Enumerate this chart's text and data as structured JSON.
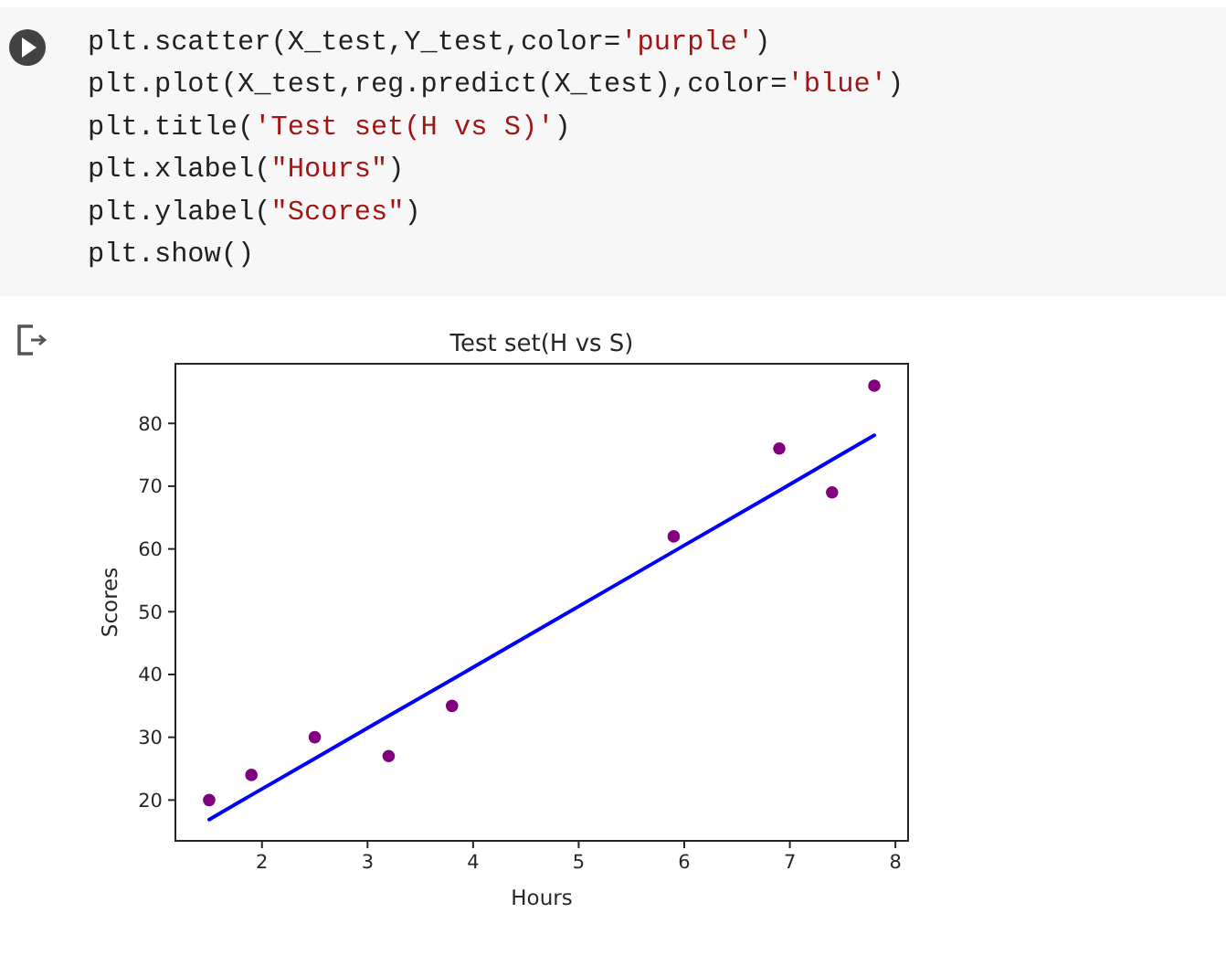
{
  "chart_data": {
    "type": "scatter",
    "title": "Test set(H vs S)",
    "xlabel": "Hours",
    "ylabel": "Scores",
    "annotations": [
      "plt.scatter(X_test,Y_test,color='purple')",
      "plt.plot(X_test,reg.predict(X_test),color='blue')",
      "plt.title('Test set(H vs S)')",
      "plt.xlabel(\"Hours\")",
      "plt.ylabel(\"Scores\")",
      "plt.show()"
    ],
    "xlim": [
      1.18,
      8.12
    ],
    "ylim": [
      13.5,
      89.5
    ],
    "xticks": [
      2,
      3,
      4,
      5,
      6,
      7,
      8
    ],
    "yticks": [
      20,
      30,
      40,
      50,
      60,
      70,
      80
    ],
    "marker": "circle",
    "series": [
      {
        "color": "#800080",
        "x": [
          1.5,
          1.9,
          2.5,
          3.2,
          3.8,
          5.9,
          6.9,
          7.4,
          7.8
        ],
        "values": [
          20,
          24,
          30,
          27,
          35,
          62,
          76,
          69,
          86
        ]
      },
      {
        "type": "line",
        "color": "#0000ff",
        "marker": "none",
        "x": [
          1.5,
          1.9,
          2.5,
          3.2,
          3.8,
          5.9,
          6.9,
          7.4,
          7.8
        ],
        "values": [
          16.9,
          20.8,
          26.6,
          33.4,
          39.2,
          59.6,
          69.3,
          74.2,
          78.1
        ]
      }
    ]
  }
}
